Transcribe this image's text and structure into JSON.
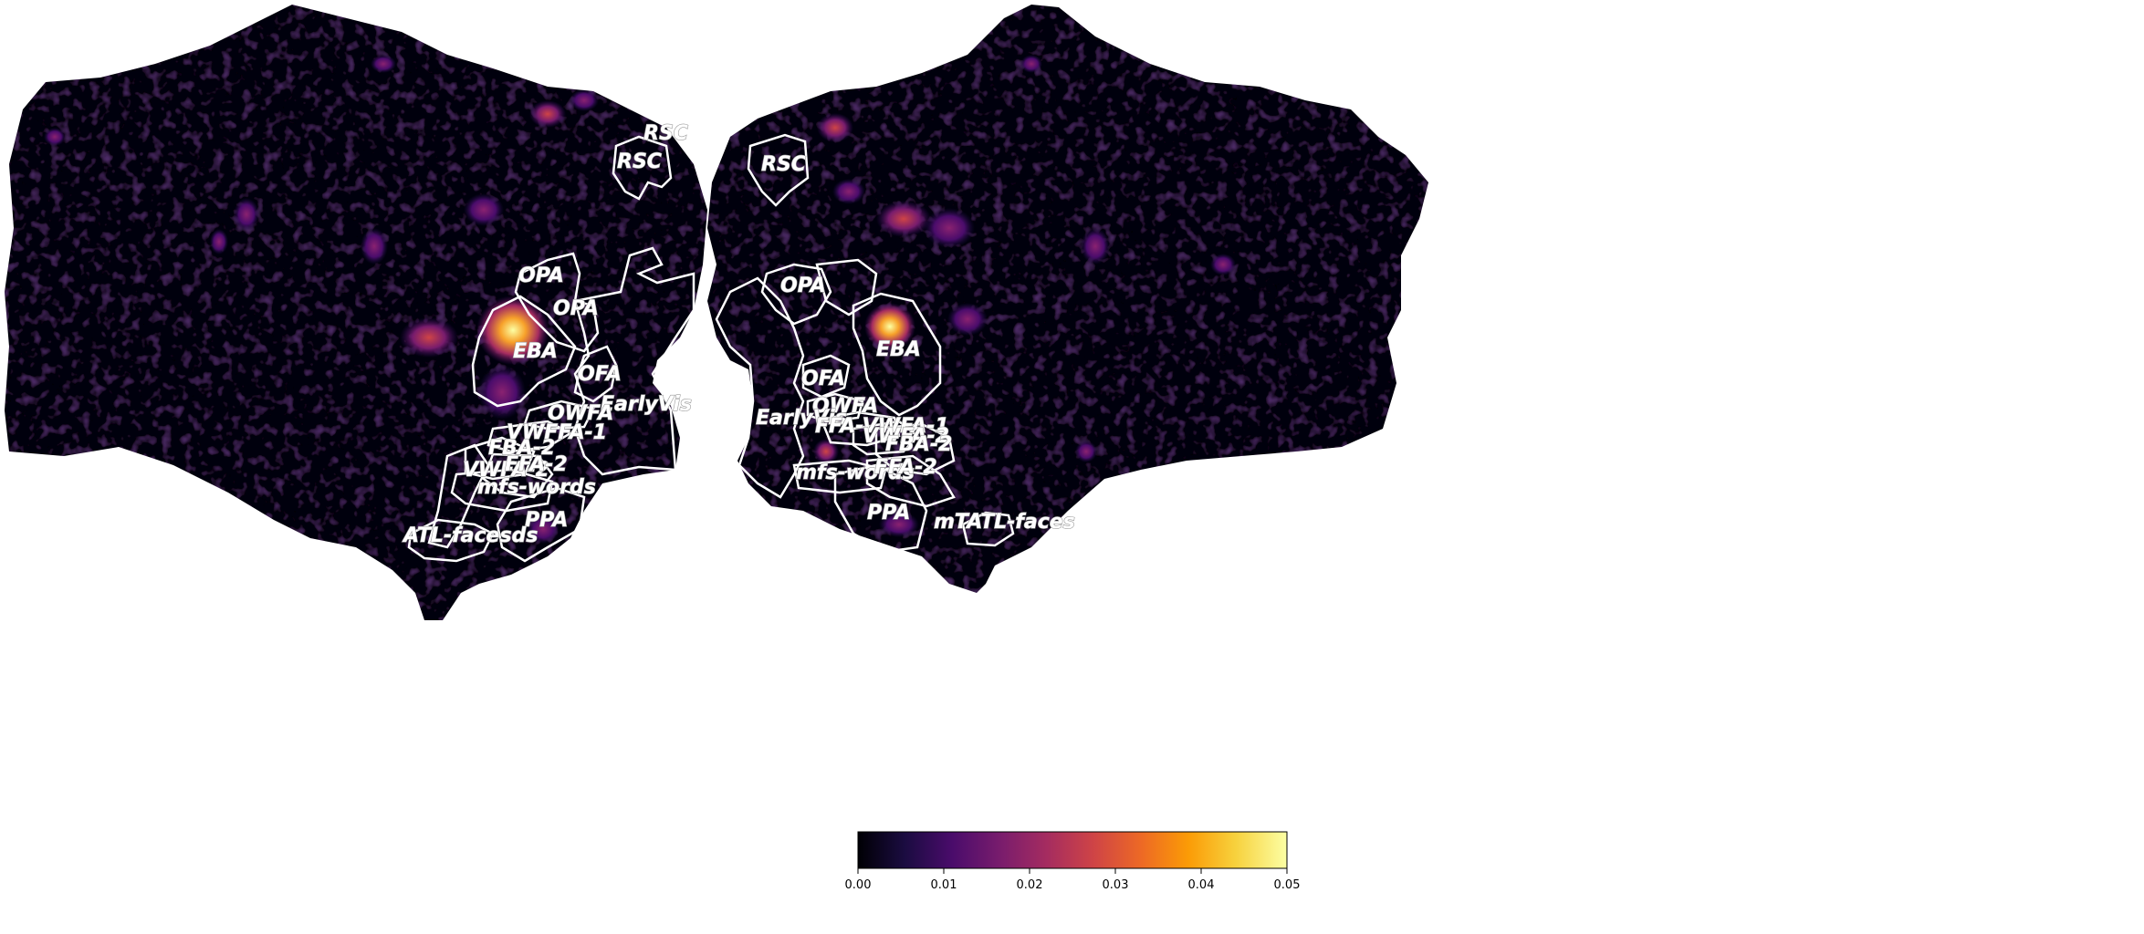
{
  "figure": {
    "background": "#ffffff",
    "surface_color": "#050208",
    "outline_color": "#ffffff",
    "colormap": "inferno",
    "colormap_stops": [
      "#000004",
      "#1b0c41",
      "#4a0c6b",
      "#781c6d",
      "#a52c60",
      "#cf4446",
      "#ed6925",
      "#fb9b06",
      "#f7d13d",
      "#fcffa4"
    ]
  },
  "left_hemisphere": {
    "labels": [
      {
        "id": "rsc-top",
        "text": "RSC"
      },
      {
        "id": "rsc",
        "text": "RSC"
      },
      {
        "id": "opa-1",
        "text": "OPA"
      },
      {
        "id": "opa-2",
        "text": "OPA"
      },
      {
        "id": "eba",
        "text": "EBA"
      },
      {
        "id": "ofa",
        "text": "OFA"
      },
      {
        "id": "earlyvis",
        "text": "EarlyVis"
      },
      {
        "id": "owfa",
        "text": "OWFA"
      },
      {
        "id": "vwffa-1",
        "text": "VWFFA-1"
      },
      {
        "id": "fba-2",
        "text": "FBA-2"
      },
      {
        "id": "vwfa-2",
        "text": "VWFA-2"
      },
      {
        "id": "ffa-2",
        "text": "FFA-2"
      },
      {
        "id": "mfs-words",
        "text": "mfs-words"
      },
      {
        "id": "ppa",
        "text": "PPA"
      },
      {
        "id": "atl-faces",
        "text": "ATL-facesds"
      }
    ]
  },
  "right_hemisphere": {
    "labels": [
      {
        "id": "rsc",
        "text": "RSC"
      },
      {
        "id": "opa",
        "text": "OPA"
      },
      {
        "id": "eba",
        "text": "EBA"
      },
      {
        "id": "ofa",
        "text": "OFA"
      },
      {
        "id": "owfa",
        "text": "OWFA"
      },
      {
        "id": "earlyvis",
        "text": "EarlyVis"
      },
      {
        "id": "ffa-vwfa-1",
        "text": "FFA-VWFA-1"
      },
      {
        "id": "vwfa-2",
        "text": "VWFA-2"
      },
      {
        "id": "fba-2",
        "text": "FBA-2"
      },
      {
        "id": "mfs-words",
        "text": "mfs-words"
      },
      {
        "id": "ffa-2",
        "text": "FFA-2"
      },
      {
        "id": "ppa",
        "text": "PPA"
      },
      {
        "id": "mtatl-faces",
        "text": "mTATL-faces"
      }
    ]
  },
  "colorbar": {
    "min": 0.0,
    "max": 0.05,
    "ticks": [
      "0.00",
      "0.01",
      "0.02",
      "0.03",
      "0.04",
      "0.05"
    ]
  }
}
